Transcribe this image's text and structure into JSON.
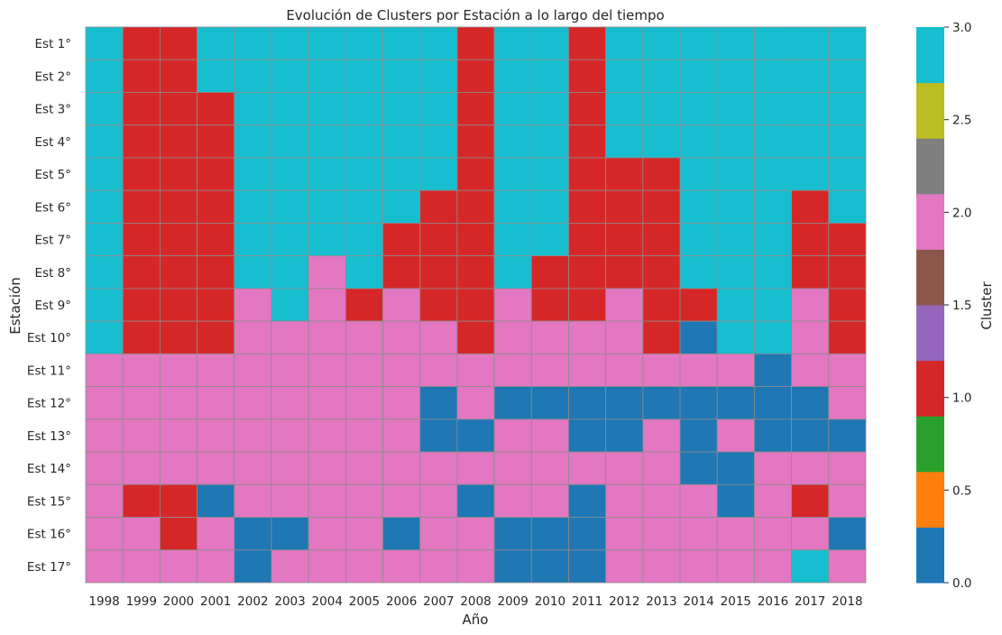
{
  "chart_data": {
    "type": "heatmap",
    "title": "Evolución de Clusters por Estación a lo largo del tiempo",
    "xlabel": "Año",
    "ylabel": "Estación",
    "x_categories": [
      "1998",
      "1999",
      "2000",
      "2001",
      "2002",
      "2003",
      "2004",
      "2005",
      "2006",
      "2007",
      "2008",
      "2009",
      "2010",
      "2011",
      "2012",
      "2013",
      "2014",
      "2015",
      "2016",
      "2017",
      "2018"
    ],
    "y_categories": [
      "Est 1°",
      "Est 2°",
      "Est 3°",
      "Est 4°",
      "Est 5°",
      "Est 6°",
      "Est 7°",
      "Est 8°",
      "Est 9°",
      "Est 10°",
      "Est 11°",
      "Est 12°",
      "Est 13°",
      "Est 14°",
      "Est 15°",
      "Est 16°",
      "Est 17°"
    ],
    "values": [
      [
        3,
        1,
        1,
        3,
        3,
        3,
        3,
        3,
        3,
        3,
        1,
        3,
        3,
        1,
        3,
        3,
        3,
        3,
        3,
        3,
        3
      ],
      [
        3,
        1,
        1,
        3,
        3,
        3,
        3,
        3,
        3,
        3,
        1,
        3,
        3,
        1,
        3,
        3,
        3,
        3,
        3,
        3,
        3
      ],
      [
        3,
        1,
        1,
        1,
        3,
        3,
        3,
        3,
        3,
        3,
        1,
        3,
        3,
        1,
        3,
        3,
        3,
        3,
        3,
        3,
        3
      ],
      [
        3,
        1,
        1,
        1,
        3,
        3,
        3,
        3,
        3,
        3,
        1,
        3,
        3,
        1,
        3,
        3,
        3,
        3,
        3,
        3,
        3
      ],
      [
        3,
        1,
        1,
        1,
        3,
        3,
        3,
        3,
        3,
        3,
        1,
        3,
        3,
        1,
        1,
        1,
        3,
        3,
        3,
        3,
        3
      ],
      [
        3,
        1,
        1,
        1,
        3,
        3,
        3,
        3,
        3,
        1,
        1,
        3,
        3,
        1,
        1,
        1,
        3,
        3,
        3,
        1,
        3
      ],
      [
        3,
        1,
        1,
        1,
        3,
        3,
        3,
        3,
        1,
        1,
        1,
        3,
        3,
        1,
        1,
        1,
        3,
        3,
        3,
        1,
        1
      ],
      [
        3,
        1,
        1,
        1,
        3,
        3,
        2,
        3,
        1,
        1,
        1,
        3,
        1,
        1,
        1,
        1,
        3,
        3,
        3,
        1,
        1
      ],
      [
        3,
        1,
        1,
        1,
        2,
        3,
        2,
        1,
        2,
        1,
        1,
        2,
        1,
        1,
        2,
        1,
        1,
        3,
        3,
        2,
        1
      ],
      [
        3,
        1,
        1,
        1,
        2,
        2,
        2,
        2,
        2,
        2,
        1,
        2,
        2,
        2,
        2,
        1,
        0,
        3,
        3,
        2,
        1
      ],
      [
        2,
        2,
        2,
        2,
        2,
        2,
        2,
        2,
        2,
        2,
        2,
        2,
        2,
        2,
        2,
        2,
        2,
        2,
        0,
        2,
        2
      ],
      [
        2,
        2,
        2,
        2,
        2,
        2,
        2,
        2,
        2,
        0,
        2,
        0,
        0,
        0,
        0,
        0,
        0,
        0,
        0,
        0,
        2
      ],
      [
        2,
        2,
        2,
        2,
        2,
        2,
        2,
        2,
        2,
        0,
        0,
        2,
        2,
        0,
        0,
        2,
        0,
        2,
        0,
        0,
        0
      ],
      [
        2,
        2,
        2,
        2,
        2,
        2,
        2,
        2,
        2,
        2,
        2,
        2,
        2,
        2,
        2,
        2,
        0,
        0,
        2,
        2,
        2
      ],
      [
        2,
        1,
        1,
        0,
        2,
        2,
        2,
        2,
        2,
        2,
        0,
        2,
        2,
        0,
        2,
        2,
        2,
        0,
        2,
        1,
        2
      ],
      [
        2,
        2,
        1,
        2,
        0,
        0,
        2,
        2,
        0,
        2,
        2,
        0,
        0,
        0,
        2,
        2,
        2,
        2,
        2,
        2,
        0
      ],
      [
        2,
        2,
        2,
        2,
        0,
        2,
        2,
        2,
        2,
        2,
        2,
        0,
        0,
        0,
        2,
        2,
        2,
        2,
        2,
        3,
        2
      ]
    ],
    "value_colors": {
      "0": "#1f77b4",
      "1": "#d62728",
      "2": "#e377c2",
      "3": "#17becf"
    },
    "colorbar": {
      "label": "Cluster",
      "range": [
        0,
        3
      ],
      "ticks": [
        "0.0",
        "0.5",
        "1.0",
        "1.5",
        "2.0",
        "2.5",
        "3.0"
      ],
      "colors": [
        "#1f77b4",
        "#ff7f0e",
        "#2ca02c",
        "#d62728",
        "#9467bd",
        "#8c564b",
        "#e377c2",
        "#7f7f7f",
        "#bcbd22",
        "#17becf"
      ]
    }
  }
}
